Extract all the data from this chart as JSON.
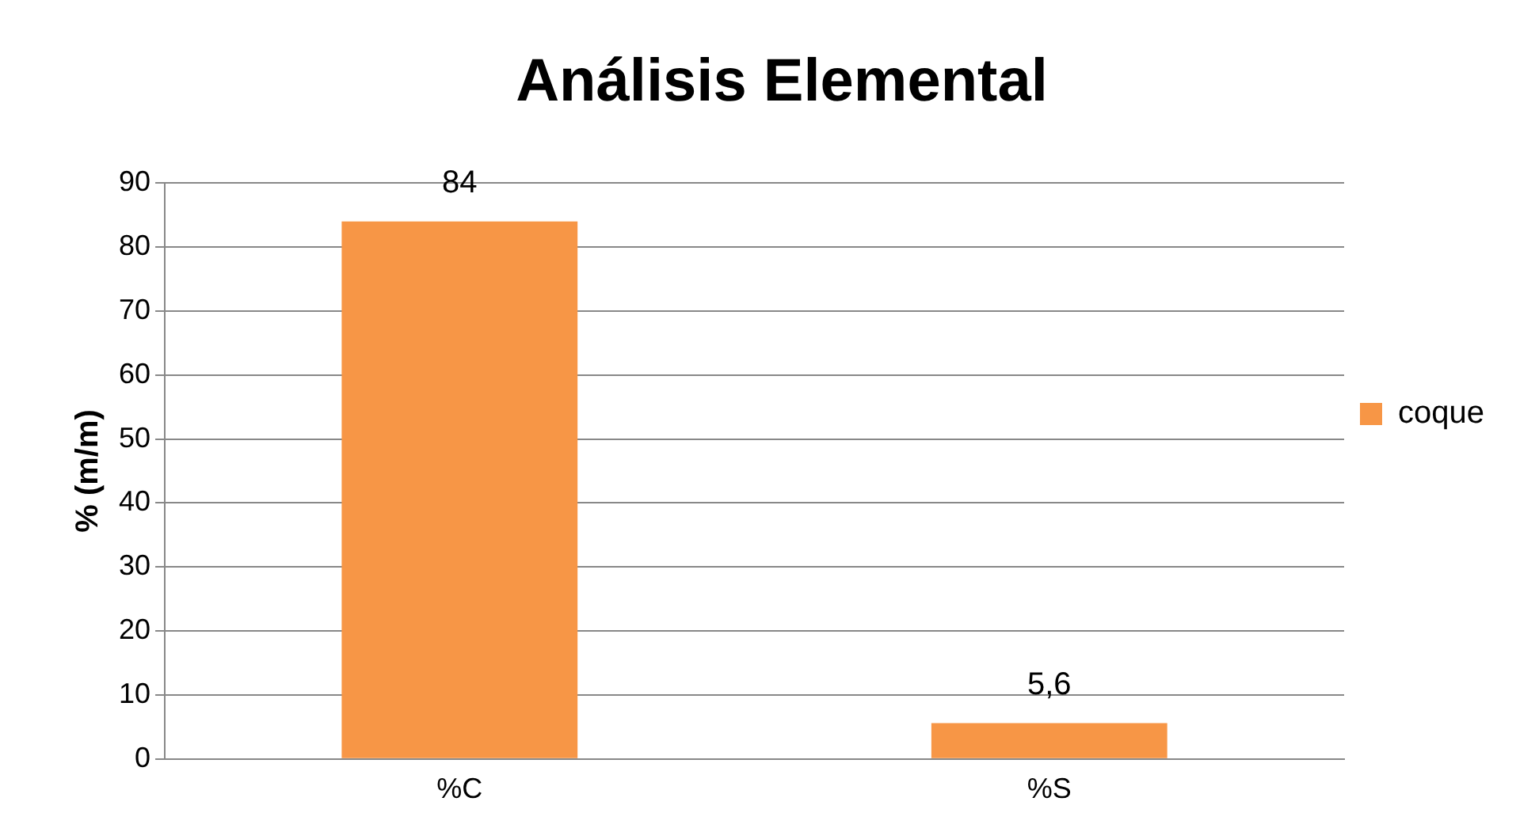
{
  "chart_data": {
    "type": "bar",
    "title": "Análisis Elemental",
    "ylabel": "% (m/m)",
    "categories": [
      "%C",
      "%S"
    ],
    "series": [
      {
        "name": "coque",
        "color": "#f79646",
        "values": [
          84,
          5.6
        ],
        "value_labels": [
          "84",
          "5,6"
        ]
      }
    ],
    "ylim": [
      0,
      90
    ],
    "yticks": [
      0,
      10,
      20,
      30,
      40,
      50,
      60,
      70,
      80,
      90
    ],
    "grid": "y",
    "legend": "right"
  }
}
